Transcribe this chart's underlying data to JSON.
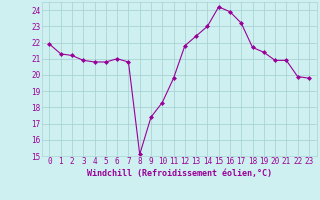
{
  "x": [
    0,
    1,
    2,
    3,
    4,
    5,
    6,
    7,
    8,
    9,
    10,
    11,
    12,
    13,
    14,
    15,
    16,
    17,
    18,
    19,
    20,
    21,
    22,
    23
  ],
  "y": [
    21.9,
    21.3,
    21.2,
    20.9,
    20.8,
    20.8,
    21.0,
    20.8,
    15.1,
    17.4,
    18.3,
    19.8,
    21.8,
    22.4,
    23.0,
    24.2,
    23.9,
    23.2,
    21.7,
    21.4,
    20.9,
    20.9,
    19.9,
    19.8
  ],
  "line_color": "#990099",
  "marker": "D",
  "marker_size": 2,
  "xlabel": "Windchill (Refroidissement éolien,°C)",
  "ylim": [
    15,
    24.5
  ],
  "yticks": [
    15,
    16,
    17,
    18,
    19,
    20,
    21,
    22,
    23,
    24
  ],
  "xticks": [
    0,
    1,
    2,
    3,
    4,
    5,
    6,
    7,
    8,
    9,
    10,
    11,
    12,
    13,
    14,
    15,
    16,
    17,
    18,
    19,
    20,
    21,
    22,
    23
  ],
  "bg_color": "#cff0f0",
  "grid_color": "#aad4d4",
  "tick_label_color": "#990099",
  "xlabel_color": "#990099",
  "xlabel_fontsize": 6.0,
  "tick_fontsize": 5.5,
  "linewidth": 0.8
}
